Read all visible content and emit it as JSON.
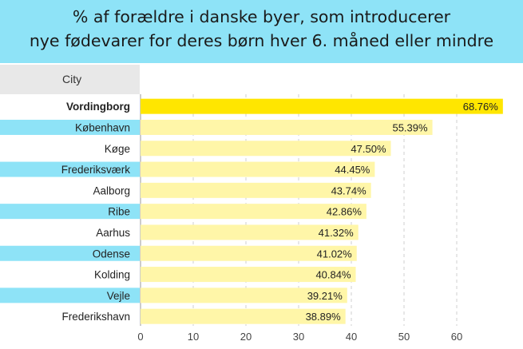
{
  "chart_data": {
    "type": "bar",
    "orientation": "horizontal",
    "title_lines": [
      "% af forældre i danske byer, som introducerer",
      "nye fødevarer for deres børn hver 6. måned eller mindre"
    ],
    "category_header": "City",
    "categories": [
      "Vordingborg",
      "København",
      "Køge",
      "Frederiksværk",
      "Aalborg",
      "Ribe",
      "Aarhus",
      "Odense",
      "Kolding",
      "Vejle",
      "Frederikshavn"
    ],
    "values": [
      68.76,
      55.39,
      47.5,
      44.45,
      43.74,
      42.86,
      41.32,
      41.02,
      40.84,
      39.21,
      38.89
    ],
    "value_labels": [
      "68.76%",
      "55.39%",
      "47.50%",
      "44.45%",
      "43.74%",
      "42.86%",
      "41.32%",
      "41.02%",
      "40.84%",
      "39.21%",
      "38.89%"
    ],
    "highlighted_category": "Vordingborg",
    "xlim": [
      0,
      70
    ],
    "xticks": [
      0,
      10,
      20,
      30,
      40,
      50,
      60
    ],
    "grid": "vertical dashed",
    "colors": {
      "title_background": "#8ee3f7",
      "highlight_bar": "#ffe600",
      "bar": "#fff6a8",
      "label_stripe": "#8ee3f7",
      "header_background": "#e8e8e8"
    }
  }
}
